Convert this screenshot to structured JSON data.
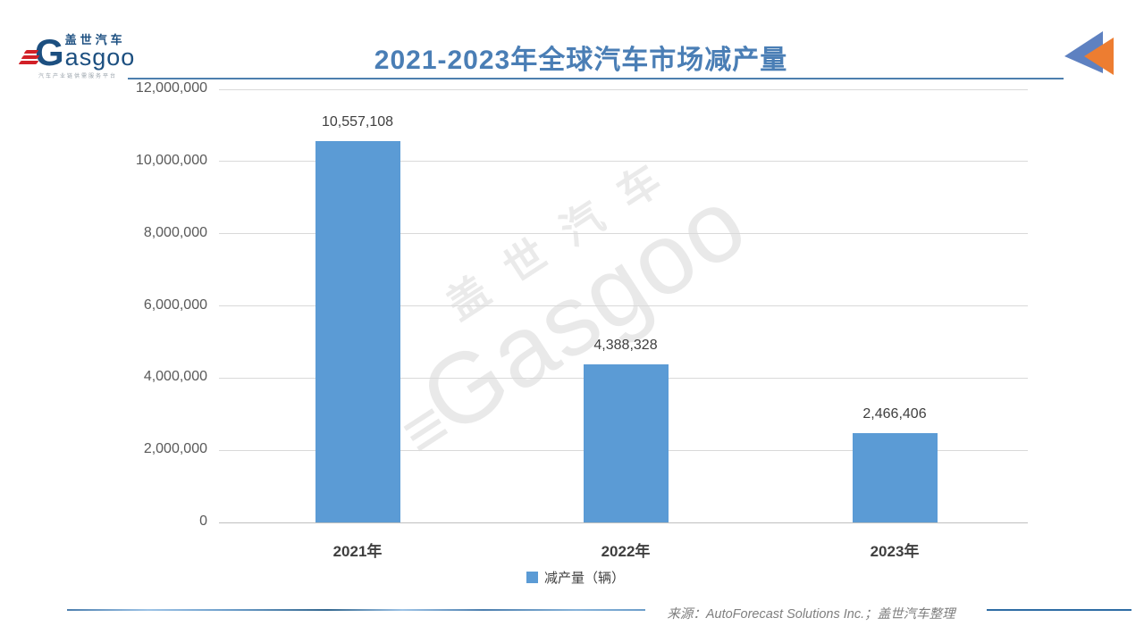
{
  "logo": {
    "chinese": "盖世汽车",
    "g": "G",
    "latin": "asgoo",
    "tagline": "汽车产业链供需服务平台"
  },
  "header": {
    "title": "2021-2023年全球汽车市场减产量"
  },
  "colors": {
    "bar_blue": "#5b9bd5",
    "title_blue": "#4a7eb5",
    "underline_blue": "#4d7fae",
    "triangle_blue": "#5e81c1",
    "triangle_orange": "#ed7d31",
    "gridline_gray": "#d9d9d9",
    "logo_navy": "#1c4f80",
    "logo_red": "#d22027"
  },
  "chart_data": {
    "type": "bar",
    "title": "2021-2023年全球汽车市场减产量",
    "categories": [
      "2021年",
      "2022年",
      "2023年"
    ],
    "values": [
      10557108,
      4388328,
      2466406
    ],
    "value_labels": [
      "10,557,108",
      "4,388,328",
      "2,466,406"
    ],
    "xlabel": "",
    "ylabel": "",
    "ylim": [
      0,
      12000000
    ],
    "ytick_interval": 2000000,
    "yticks": [
      "0",
      "2,000,000",
      "4,000,000",
      "6,000,000",
      "8,000,000",
      "10,000,000",
      "12,000,000"
    ],
    "grid": true,
    "legend_position": "bottom",
    "legend": [
      "减产量（辆）"
    ],
    "bar_color": "#5b9bd5"
  },
  "legend": {
    "label": "减产量（辆）"
  },
  "watermark": {
    "line1": "盖世汽车",
    "line2": "Gasgoo"
  },
  "footer": {
    "source": "来源：AutoForecast Solutions Inc.；盖世汽车整理"
  }
}
